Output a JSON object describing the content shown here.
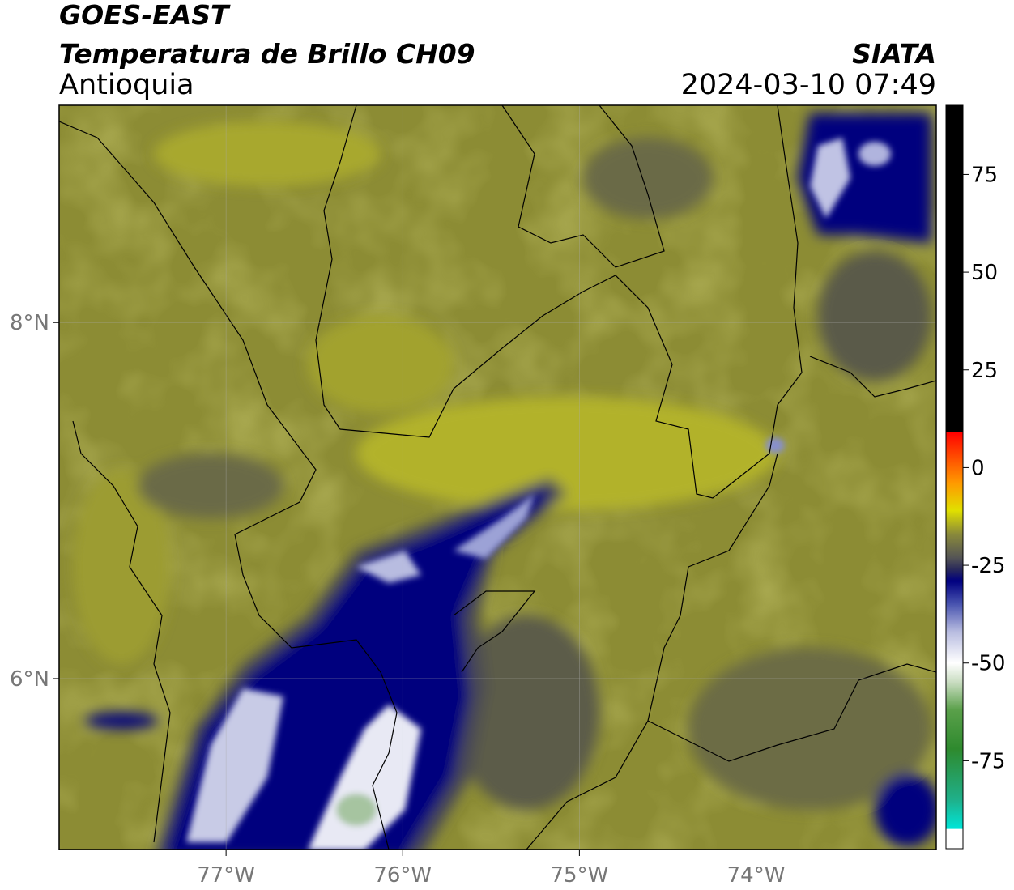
{
  "header": {
    "title": "GOES-EAST",
    "subtitle": "Temperatura de Brillo CH09",
    "region": "Antioquia",
    "source": "SIATA",
    "datetime": "2024-03-10 07:49"
  },
  "map": {
    "lonlim": [
      -77.945,
      -72.98
    ],
    "latlim": [
      5.04,
      9.22
    ],
    "lon_ticks": [
      {
        "value": -77,
        "label": "77°W"
      },
      {
        "value": -76,
        "label": "76°W"
      },
      {
        "value": -75,
        "label": "75°W"
      },
      {
        "value": -74,
        "label": "74°W"
      }
    ],
    "lat_ticks": [
      {
        "value": 8,
        "label": "8°N"
      },
      {
        "value": 6,
        "label": "6°N"
      }
    ],
    "grid": true
  },
  "colorbar": {
    "lim": [
      -97.5,
      92.7
    ],
    "ticks": [
      75,
      50,
      25,
      0,
      -25,
      -50,
      -75
    ],
    "stops": [
      {
        "value": -97.5,
        "color": "#ffffff"
      },
      {
        "value": -92.5,
        "color": "#ffffff"
      },
      {
        "value": -92.4,
        "color": "#00e5d8"
      },
      {
        "value": -85,
        "color": "#1fb08a"
      },
      {
        "value": -72,
        "color": "#2e8a2e"
      },
      {
        "value": -62,
        "color": "#5aa04a"
      },
      {
        "value": -55,
        "color": "#c8dcc0"
      },
      {
        "value": -50,
        "color": "#ffffff"
      },
      {
        "value": -42,
        "color": "#b8bce0"
      },
      {
        "value": -35,
        "color": "#4a55b0"
      },
      {
        "value": -29,
        "color": "#000080"
      },
      {
        "value": -26,
        "color": "#2a2a5a"
      },
      {
        "value": -23,
        "color": "#555555"
      },
      {
        "value": -17,
        "color": "#8a8a3a"
      },
      {
        "value": -11,
        "color": "#e0e000"
      },
      {
        "value": -4,
        "color": "#ff9a00"
      },
      {
        "value": 7,
        "color": "#ff1a00"
      },
      {
        "value": 9,
        "color": "#ff0000"
      },
      {
        "value": 9.1,
        "color": "#000000"
      },
      {
        "value": 92.7,
        "color": "#000000"
      }
    ]
  }
}
